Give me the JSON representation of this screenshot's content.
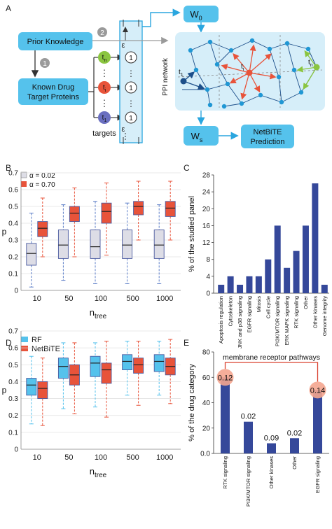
{
  "colors": {
    "blue_box": "#55c2ec",
    "light_panel": "#d6eef9",
    "arrow_blue": "#2aa6df",
    "gray_box": "#dddde6",
    "red_box": "#e8533a",
    "navy_bar": "#35489a",
    "green_node": "#8bc540",
    "purple_node": "#6a6fc0",
    "node_blue": "#1f97d4",
    "gray_circle": "#9a9a9a"
  },
  "panel_A": {
    "label": "A",
    "prior_knowledge": "Prior Knowledge",
    "known_drug_line1": "Known Drug",
    "known_drug_line2": "Target Proteins",
    "targets_label": "targets",
    "step1": "1",
    "step2": "2",
    "w0": "W",
    "w0_sub": "0",
    "ws": "W",
    "ws_sub": "s",
    "ppi_label": "PPI network",
    "netbite_line1": "NetBiTE",
    "netbite_line2": "Prediction",
    "node_tn": "t",
    "node_tn_sub": "n",
    "node_ti": "t",
    "node_ti_sub": "i",
    "node_t1": "t",
    "node_t1_sub": "1",
    "epsilon": "ε",
    "one": "1",
    "dots": "⋮"
  },
  "panel_B": {
    "label": "B",
    "legend": [
      {
        "name": "α = 0.02",
        "color": "#dddde6"
      },
      {
        "name": "α = 0.70",
        "color": "#e8533a"
      }
    ]
  },
  "panel_C": {
    "label": "C"
  },
  "panel_D": {
    "label": "D",
    "legend": [
      {
        "name": "RF",
        "color": "#55c2ec"
      },
      {
        "name": "NetBiTE",
        "color": "#e8533a"
      }
    ]
  },
  "panel_E": {
    "label": "E",
    "annotation": "membrane receptor pathways"
  },
  "chart_data": [
    {
      "id": "B",
      "type": "box",
      "xlabel": "n",
      "xlabel_sub": "tree",
      "ylabel": "p",
      "ylim": [
        0,
        0.7
      ],
      "yticks": [
        "0",
        "0.1",
        "0.2",
        "0.3",
        "0.4",
        "0.5",
        "0.6",
        "0.7"
      ],
      "categories": [
        "10",
        "50",
        "100",
        "500",
        "1000"
      ],
      "grid": true,
      "series": [
        {
          "name": "α = 0.02",
          "boxes": [
            {
              "min": 0.02,
              "q1": 0.15,
              "median": 0.22,
              "q3": 0.28,
              "max": 0.46
            },
            {
              "min": 0.06,
              "q1": 0.19,
              "median": 0.27,
              "q3": 0.36,
              "max": 0.51
            },
            {
              "min": 0.04,
              "q1": 0.19,
              "median": 0.26,
              "q3": 0.36,
              "max": 0.53
            },
            {
              "min": 0.04,
              "q1": 0.19,
              "median": 0.27,
              "q3": 0.36,
              "max": 0.52
            },
            {
              "min": 0.04,
              "q1": 0.19,
              "median": 0.27,
              "q3": 0.36,
              "max": 0.51
            }
          ]
        },
        {
          "name": "α = 0.70",
          "boxes": [
            {
              "min": 0.2,
              "q1": 0.32,
              "median": 0.37,
              "q3": 0.41,
              "max": 0.55
            },
            {
              "min": 0.2,
              "q1": 0.41,
              "median": 0.46,
              "q3": 0.5,
              "max": 0.61
            },
            {
              "min": 0.21,
              "q1": 0.4,
              "median": 0.47,
              "q3": 0.52,
              "max": 0.64
            },
            {
              "min": 0.3,
              "q1": 0.45,
              "median": 0.5,
              "q3": 0.53,
              "max": 0.65
            },
            {
              "min": 0.3,
              "q1": 0.44,
              "median": 0.49,
              "q3": 0.53,
              "max": 0.65
            }
          ]
        }
      ]
    },
    {
      "id": "C",
      "type": "bar",
      "ylabel": "% of the studied panel",
      "ylim": [
        0,
        28
      ],
      "yticks": [
        "0",
        "4",
        "8",
        "12",
        "16",
        "20",
        "24",
        "28"
      ],
      "categories": [
        "Apoptosis regulation",
        "Cytoskeleton",
        "JNK and p38 signaling",
        "EGFR signaling",
        "Mitosis",
        "Cell cycle",
        "PI3K/MTOR signaling",
        "ERK MAPK signaling",
        "RTK signaling",
        "Other",
        "Other kinases",
        "Genome integrity"
      ],
      "values": [
        2,
        4,
        2,
        4,
        4,
        8,
        16,
        6,
        10,
        16,
        26,
        2
      ]
    },
    {
      "id": "D",
      "type": "box",
      "xlabel": "n",
      "xlabel_sub": "tree",
      "ylabel": "p",
      "ylim": [
        0,
        0.7
      ],
      "yticks": [
        "0",
        "0.1",
        "0.2",
        "0.3",
        "0.4",
        "0.5",
        "0.6",
        "0.7"
      ],
      "categories": [
        "10",
        "50",
        "100",
        "500",
        "1000"
      ],
      "grid": true,
      "series": [
        {
          "name": "RF",
          "boxes": [
            {
              "min": 0.15,
              "q1": 0.32,
              "median": 0.38,
              "q3": 0.42,
              "max": 0.55
            },
            {
              "min": 0.24,
              "q1": 0.42,
              "median": 0.49,
              "q3": 0.54,
              "max": 0.63
            },
            {
              "min": 0.25,
              "q1": 0.43,
              "median": 0.51,
              "q3": 0.55,
              "max": 0.63
            },
            {
              "min": 0.32,
              "q1": 0.47,
              "median": 0.52,
              "q3": 0.56,
              "max": 0.64
            },
            {
              "min": 0.32,
              "q1": 0.46,
              "median": 0.52,
              "q3": 0.56,
              "max": 0.64
            }
          ]
        },
        {
          "name": "NetBiTE",
          "boxes": [
            {
              "min": 0.14,
              "q1": 0.3,
              "median": 0.36,
              "q3": 0.4,
              "max": 0.54
            },
            {
              "min": 0.21,
              "q1": 0.38,
              "median": 0.44,
              "q3": 0.5,
              "max": 0.63
            },
            {
              "min": 0.19,
              "q1": 0.39,
              "median": 0.47,
              "q3": 0.51,
              "max": 0.64
            },
            {
              "min": 0.26,
              "q1": 0.45,
              "median": 0.5,
              "q3": 0.54,
              "max": 0.64
            },
            {
              "min": 0.27,
              "q1": 0.44,
              "median": 0.49,
              "q3": 0.54,
              "max": 0.65
            }
          ]
        }
      ]
    },
    {
      "id": "E",
      "type": "bar",
      "ylabel": "% of the drug category",
      "ylim": [
        0,
        80
      ],
      "yticks": [
        "0.0",
        "20",
        "40",
        "60",
        "80"
      ],
      "categories": [
        "RTK signaling",
        "PI3K/MTOR signaling",
        "Other kinases",
        "Other",
        "EGFR signaling"
      ],
      "values": [
        60,
        25,
        8,
        12,
        50
      ],
      "data_labels": [
        "0.12",
        "0.02",
        "0.09",
        "0.02",
        "0.14"
      ],
      "highlighted": [
        "RTK signaling",
        "EGFR signaling"
      ]
    }
  ]
}
